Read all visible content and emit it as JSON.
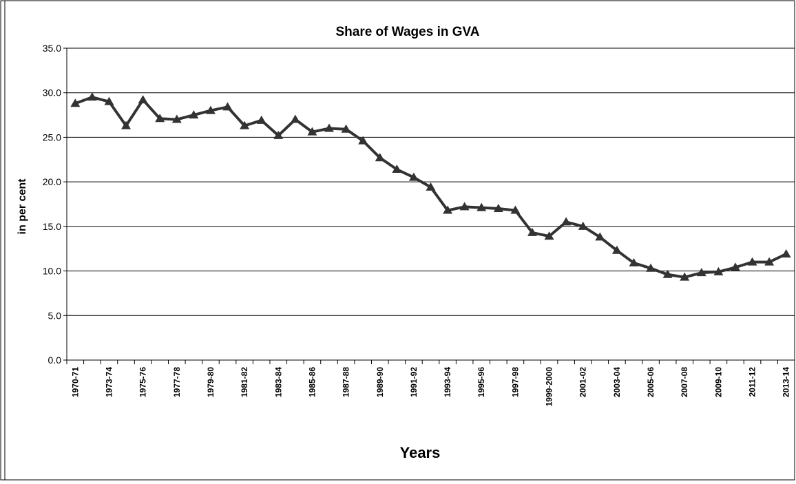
{
  "chart_data": {
    "type": "line",
    "title": "Share of Wages in GVA",
    "x_label": "Years",
    "y_label": "in per cent",
    "categories": [
      "1970-71",
      null,
      "1973-74",
      null,
      "1975-76",
      null,
      "1977-78",
      null,
      "1979-80",
      null,
      "1981-82",
      null,
      "1983-84",
      null,
      "1985-86",
      null,
      "1987-88",
      null,
      "1989-90",
      null,
      "1991-92",
      null,
      "1993-94",
      null,
      "1995-96",
      null,
      "1997-98",
      null,
      "1999-2000",
      null,
      "2001-02",
      null,
      "2003-04",
      null,
      "2005-06",
      null,
      "2007-08",
      null,
      "2009-10",
      null,
      "2011-12",
      null,
      "2013-14"
    ],
    "series": [
      {
        "name": "Share of Wages in GVA",
        "color": "#333333",
        "values": [
          28.8,
          29.5,
          29.0,
          26.3,
          29.2,
          27.1,
          27.0,
          27.5,
          28.0,
          28.4,
          26.3,
          26.9,
          25.2,
          27.0,
          25.6,
          26.0,
          25.9,
          24.6,
          22.7,
          21.4,
          20.5,
          19.4,
          16.8,
          17.2,
          17.1,
          17.0,
          16.8,
          14.3,
          13.9,
          15.5,
          15.0,
          13.8,
          12.3,
          10.9,
          10.3,
          9.6,
          9.3,
          9.8,
          9.9,
          10.4,
          11.0,
          11.0,
          11.9
        ]
      }
    ],
    "ylim": [
      0,
      35
    ],
    "yticks": [
      {
        "value": 0,
        "label": "0.0"
      },
      {
        "value": 5,
        "label": "5.0"
      },
      {
        "value": 10,
        "label": "10.0"
      },
      {
        "value": 15,
        "label": "15.0"
      },
      {
        "value": 20,
        "label": "20.0"
      },
      {
        "value": 25,
        "label": "25.0"
      },
      {
        "value": 30,
        "label": "30.0"
      },
      {
        "value": 35,
        "label": "35.0"
      }
    ],
    "grid": true
  }
}
